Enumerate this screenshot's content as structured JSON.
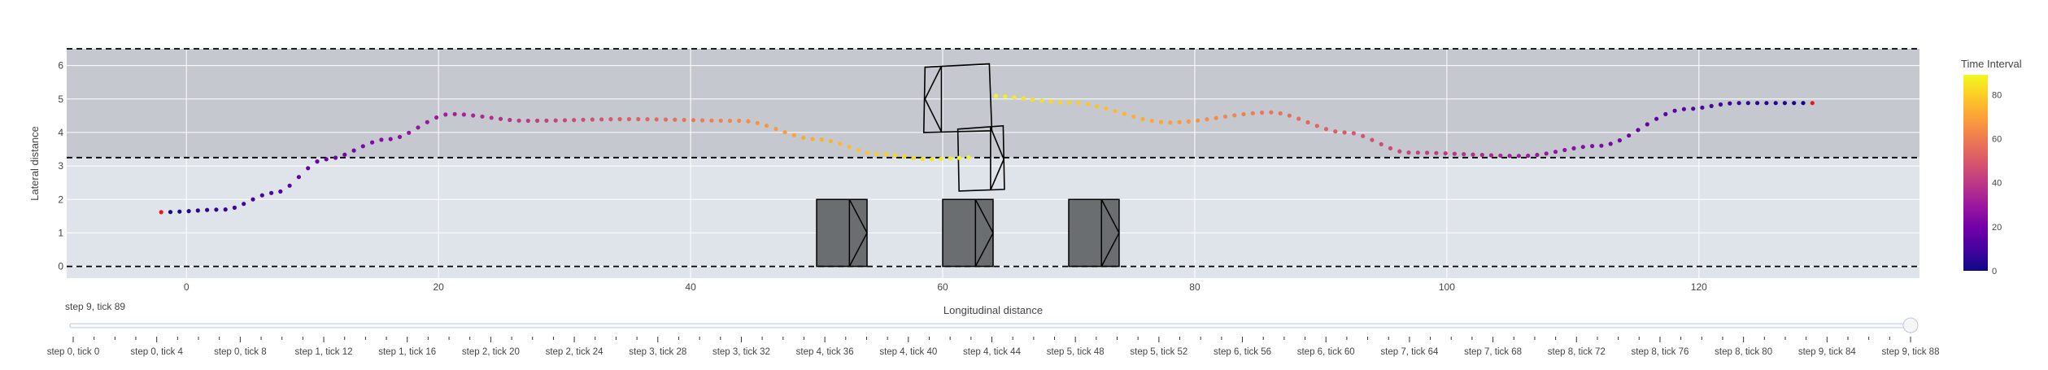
{
  "chart_data": {
    "type": "scatter",
    "xlabel": "Longitudinal distance",
    "ylabel": "Lateral distance",
    "xlim": [
      -9.5,
      137.5
    ],
    "ylim": [
      -0.35,
      6.5
    ],
    "x_ticks": [
      0,
      20,
      40,
      60,
      80,
      100,
      120
    ],
    "y_ticks": [
      0,
      1,
      2,
      3,
      4,
      5,
      6
    ],
    "grid": true,
    "lane_dividers_y": [
      0,
      3.25,
      6.5
    ],
    "colorbar": {
      "title": "Time Interval",
      "range": [
        0,
        89
      ],
      "ticks": [
        0,
        20,
        40,
        60,
        80
      ],
      "colorscale": "plasma"
    },
    "trajectory": [
      {
        "t": 0,
        "x": -2,
        "y": 1.65
      },
      {
        "t": 89,
        "x": 129,
        "y": 4.9
      }
    ],
    "trajectory_shape": [
      {
        "x": -2,
        "y": 1.62
      },
      {
        "x": 3,
        "y": 1.7
      },
      {
        "x": 7,
        "y": 2.2
      },
      {
        "x": 11,
        "y": 3.2
      },
      {
        "x": 16,
        "y": 3.8
      },
      {
        "x": 21,
        "y": 4.55
      },
      {
        "x": 27,
        "y": 4.35
      },
      {
        "x": 35,
        "y": 4.4
      },
      {
        "x": 44,
        "y": 4.35
      },
      {
        "x": 50,
        "y": 3.8
      },
      {
        "x": 55,
        "y": 3.35
      },
      {
        "x": 59,
        "y": 3.2
      },
      {
        "x": 62,
        "y": 3.25
      },
      {
        "x": 63.5,
        "y": 5.1
      },
      {
        "x": 70,
        "y": 4.9
      },
      {
        "x": 78,
        "y": 4.3
      },
      {
        "x": 86,
        "y": 4.6
      },
      {
        "x": 92,
        "y": 4.0
      },
      {
        "x": 97,
        "y": 3.4
      },
      {
        "x": 106,
        "y": 3.3
      },
      {
        "x": 112,
        "y": 3.6
      },
      {
        "x": 119,
        "y": 4.7
      },
      {
        "x": 123,
        "y": 4.88
      },
      {
        "x": 129,
        "y": 4.88
      }
    ],
    "trajectory_endpoints_color": "#e41a1c",
    "obstacles_bottom_lane": [
      {
        "x0": 50,
        "x1": 54,
        "y0": 0,
        "y1": 2
      },
      {
        "x0": 60,
        "x1": 64,
        "y0": 0,
        "y1": 2
      },
      {
        "x0": 70,
        "x1": 74,
        "y0": 0,
        "y1": 2
      }
    ],
    "ego_vehicle_outlines": [
      {
        "corners": [
          [
            60,
            4
          ],
          [
            58.5,
            4.05
          ],
          [
            58.5,
            5.95
          ],
          [
            63.8,
            6.05
          ],
          [
            64,
            4.05
          ]
        ]
      },
      {
        "corners": [
          [
            62.2,
            2.3
          ],
          [
            64.8,
            2.35
          ],
          [
            64.7,
            4.2
          ],
          [
            61.9,
            4.1
          ]
        ]
      }
    ],
    "slider": {
      "current_label": "step 9, tick 89",
      "ticks": [
        "step 0, tick 0",
        "step 0, tick 4",
        "step 0, tick 8",
        "step 1, tick 12",
        "step 1, tick 16",
        "step 2, tick 20",
        "step 2, tick 24",
        "step 3, tick 28",
        "step 3, tick 32",
        "step 4, tick 36",
        "step 4, tick 40",
        "step 4, tick 44",
        "step 5, tick 48",
        "step 5, tick 52",
        "step 6, tick 56",
        "step 6, tick 60",
        "step 7, tick 64",
        "step 7, tick 68",
        "step 8, tick 72",
        "step 8, tick 76",
        "step 8, tick 80",
        "step 9, tick 84",
        "step 9, tick 88"
      ],
      "value_fraction": 1.0
    },
    "colors": {
      "upper_lane": "#c5c9cf",
      "lower_lane": "#dfe3ea",
      "obstacle_fill": "#6b6e70",
      "grid": "#ffffff"
    }
  }
}
